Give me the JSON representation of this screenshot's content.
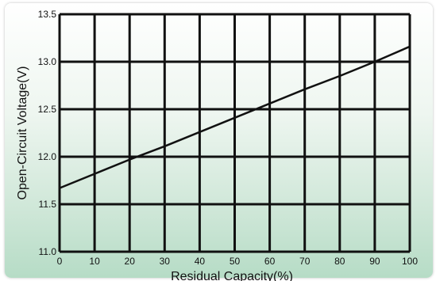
{
  "chart_data": {
    "type": "line",
    "title": "",
    "xlabel": "Residual Capacity(%)",
    "ylabel": "Open-Circuit Voltage(V)",
    "xlim": [
      0,
      100
    ],
    "ylim": [
      11.0,
      13.5
    ],
    "x_ticks": [
      "0",
      "10",
      "20",
      "30",
      "40",
      "50",
      "60",
      "70",
      "80",
      "90",
      "100"
    ],
    "y_ticks": [
      "11.0",
      "11.5",
      "12.0",
      "12.5",
      "13.0",
      "13.5"
    ],
    "grid": true,
    "series": [
      {
        "x": [
          0,
          10,
          20,
          30,
          40,
          50,
          60,
          70,
          80,
          90,
          100
        ],
        "values": [
          11.67,
          11.82,
          11.97,
          12.11,
          12.26,
          12.41,
          12.56,
          12.71,
          12.85,
          13.0,
          13.16
        ],
        "color": "#111111"
      }
    ]
  }
}
